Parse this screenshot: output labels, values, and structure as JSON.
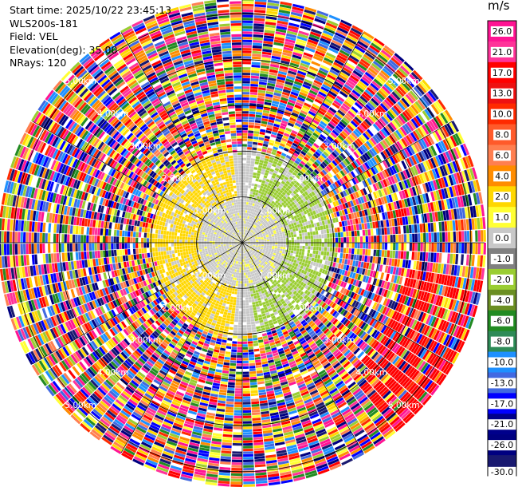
{
  "info": {
    "start_time": "Start time: 2025/10/22 23:45:13",
    "station": "WLS200s-181",
    "field": "Field: VEL",
    "elevation": "Elevation(deg): 35.00",
    "nrays": "NRays: 120"
  },
  "colorbar": {
    "unit": "m/s",
    "ticks": [
      "26.0",
      "21.0",
      "17.0",
      "13.0",
      "10.0",
      "8.0",
      "6.0",
      "4.0",
      "2.0",
      "1.0",
      "0.0",
      "-1.0",
      "-2.0",
      "-4.0",
      "-6.0",
      "-8.0",
      "-10.0",
      "-13.0",
      "-17.0",
      "-21.0",
      "-26.0",
      "-30.0"
    ],
    "colors": [
      "#ff1493",
      "#ff3399",
      "#ff0000",
      "#ee1111",
      "#ff2a00",
      "#ff5a2a",
      "#ff7f50",
      "#ff8c00",
      "#ffd700",
      "#ffff33",
      "#c8c8c8",
      "#808080",
      "#9acd32",
      "#6b8e23",
      "#228b22",
      "#2e8b57",
      "#1e90ff",
      "#4169e1",
      "#0000ff",
      "#00008b",
      "#000080",
      "#191970"
    ]
  },
  "chart_data": {
    "type": "ppi",
    "field": "VEL",
    "unit": "m/s",
    "elevation_deg": 35.0,
    "n_rays": 120,
    "range_rings": [
      {
        "range_km": 1.0,
        "label": "1.00km"
      },
      {
        "range_km": 2.0,
        "label": "2.00km"
      },
      {
        "range_km": 3.0,
        "label": "3.00km"
      },
      {
        "range_km": 4.0,
        "label": "4.00km"
      },
      {
        "range_km": 5.0,
        "label": "5.00km"
      }
    ],
    "max_range_km": 5.3,
    "spokes_deg": 30,
    "color_scale": [
      -30,
      -26,
      -21,
      -17,
      -13,
      -10,
      -8,
      -6,
      -4,
      -2,
      -1,
      0,
      1,
      2,
      4,
      6,
      8,
      10,
      13,
      17,
      21,
      26
    ],
    "pattern": {
      "inner_range_km": 2.0,
      "inner_west_velocity": 3.0,
      "inner_east_velocity": -1.5,
      "inner_center_velocity": 0.0,
      "outer": "noise"
    }
  }
}
